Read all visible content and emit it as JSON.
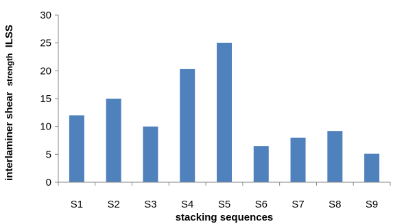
{
  "chart_data": {
    "type": "bar",
    "categories": [
      "S1",
      "S2",
      "S3",
      "S4",
      "S5",
      "S6",
      "S7",
      "S8",
      "S9"
    ],
    "values": [
      12,
      15,
      10,
      20.3,
      25,
      6.5,
      8,
      9.2,
      5.1
    ],
    "xlabel": "stacking sequences",
    "ylabel_main": "interlaminer shear",
    "ylabel_small": "strength",
    "ylabel_end": "ILSS",
    "ylim": [
      0,
      30
    ],
    "yticks": [
      0,
      5,
      10,
      15,
      20,
      25,
      30
    ],
    "grid": false,
    "legend": "none",
    "bar_color": "#4F81BD",
    "axis_color": "#868686"
  }
}
